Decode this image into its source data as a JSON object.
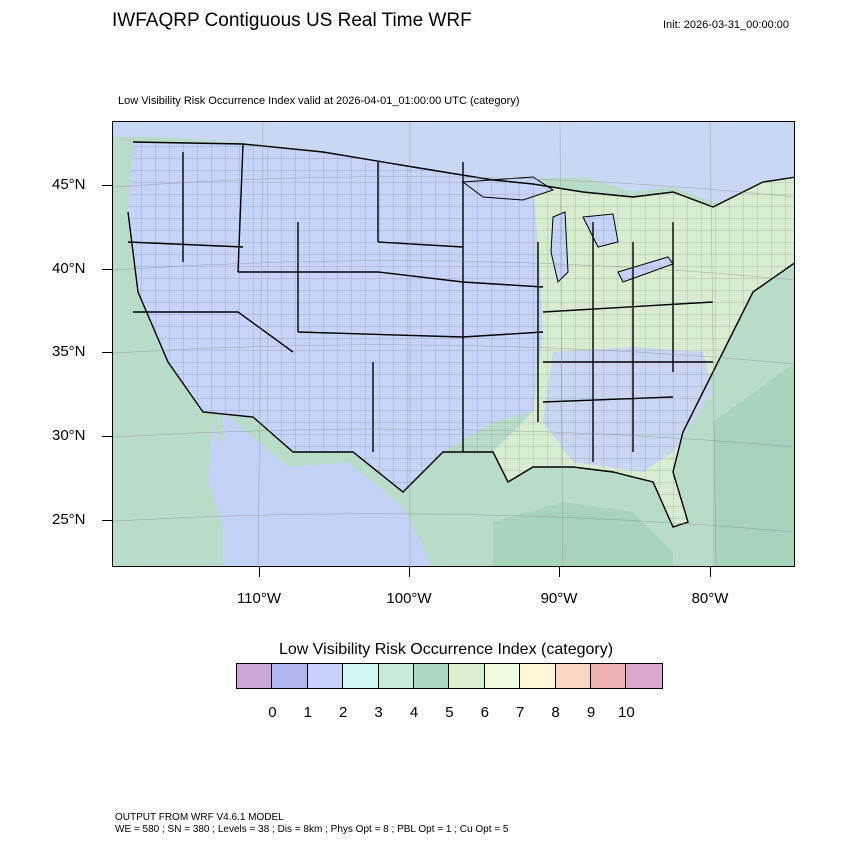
{
  "header": {
    "title": "IWFAQRP Contiguous US Real Time WRF",
    "init": "Init: 2026-03-31_00:00:00"
  },
  "map": {
    "subtitle": "Low Visibility Risk Occurrence Index valid at 2026-04-01_01:00:00 UTC   (category)",
    "lat_labels": [
      "45°N",
      "40°N",
      "35°N",
      "30°N",
      "25°N"
    ],
    "lon_labels": [
      "110°W",
      "100°W",
      "90°W",
      "80°W"
    ],
    "colors": {
      "land_dominant": "#c5d4f8",
      "land_east": "#d8ecd0",
      "ocean": "#b8dcc8",
      "ocean_deep": "#a9d4bc",
      "great_lakes": "#c5d4f8",
      "borders": "#000000"
    }
  },
  "colorbar": {
    "title": "Low Visibility Risk Occurrence Index  (category)",
    "labels": [
      "0",
      "1",
      "2",
      "3",
      "4",
      "5",
      "6",
      "7",
      "8",
      "9",
      "10"
    ],
    "colors": [
      "#cba7d8",
      "#b1b6f1",
      "#c5d2fb",
      "#d2f6f2",
      "#c6ebd9",
      "#acd9c0",
      "#dcf0d0",
      "#eefbdd",
      "#fff6d6",
      "#fdd5c5",
      "#f0b3b3",
      "#dba8cf"
    ]
  },
  "footer": {
    "line1": "OUTPUT FROM WRF V4.6.1 MODEL",
    "line2": "WE = 580 ; SN = 380 ; Levels = 38 ; Dis = 8km ; Phys Opt = 8 ; PBL Opt = 1 ; Cu Opt = 5"
  }
}
